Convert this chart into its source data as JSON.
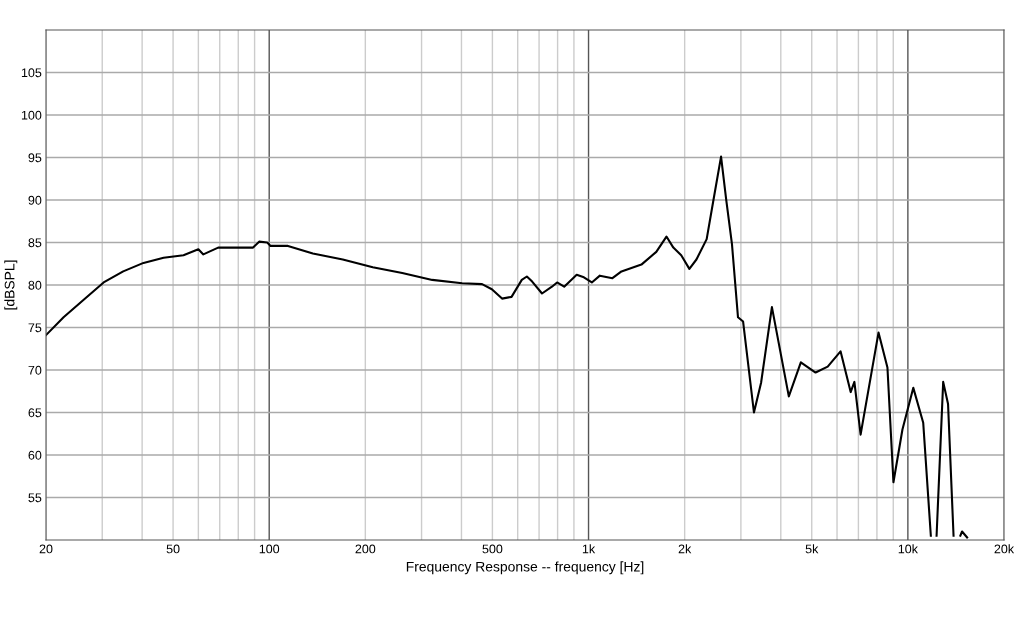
{
  "chart_data": {
    "type": "line",
    "xlabel": "Frequency Response -- frequency [Hz]",
    "ylabel": "[dBSPL]",
    "log": "x",
    "grid": true,
    "legend": false,
    "xlim": [
      20,
      20000
    ],
    "ylim": [
      50,
      110
    ],
    "xticks": [
      20,
      {
        "value": 30,
        "label": null
      },
      {
        "value": 40,
        "label": null
      },
      50,
      {
        "value": 60,
        "label": null
      },
      {
        "value": 70,
        "label": null
      },
      {
        "value": 80,
        "label": null
      },
      {
        "value": 90,
        "label": null
      },
      100,
      200,
      {
        "value": 300,
        "label": null
      },
      {
        "value": 400,
        "label": null
      },
      500,
      {
        "value": 600,
        "label": null
      },
      {
        "value": 700,
        "label": null
      },
      {
        "value": 800,
        "label": null
      },
      {
        "value": 900,
        "label": null
      },
      {
        "value": 1000,
        "label": "1k"
      },
      {
        "value": 2000,
        "label": "2k"
      },
      {
        "value": 3000,
        "label": null
      },
      {
        "value": 4000,
        "label": null
      },
      {
        "value": 5000,
        "label": "5k"
      },
      {
        "value": 6000,
        "label": null
      },
      {
        "value": 7000,
        "label": null
      },
      {
        "value": 8000,
        "label": null
      },
      {
        "value": 9000,
        "label": null
      },
      {
        "value": 10000,
        "label": "10k"
      },
      {
        "value": 20000,
        "label": "20k"
      }
    ],
    "yticks": [
      55,
      60,
      65,
      70,
      75,
      80,
      85,
      90,
      95,
      100,
      105
    ],
    "series": [
      {
        "color": "#000000",
        "line_style": "solid",
        "marker": "none",
        "x": [
          20,
          22.7,
          26.3,
          30.3,
          34.9,
          40.4,
          46.7,
          53.9,
          60,
          62.2,
          69.2,
          83,
          89,
          93,
          98.6,
          101,
          114.5,
          137,
          170,
          211,
          261,
          324,
          402,
          464,
          498,
          536,
          574,
          618,
          641,
          666,
          715,
          768,
          797,
          839,
          918,
          967,
          1024,
          1085,
          1188,
          1268,
          1464,
          1630,
          1754,
          1843,
          1951,
          2069,
          2177,
          2344,
          2456,
          2600,
          2697,
          2813,
          2938,
          3048,
          3296,
          3470,
          3752,
          4238,
          4622,
          5140,
          5610,
          6154,
          6620,
          6800,
          7112,
          8092,
          8630,
          9012,
          9616,
          10400,
          11170,
          11800,
          11900,
          12300,
          12900,
          13360,
          13900,
          14100,
          14600,
          14780,
          15330
        ],
        "values": [
          74.1,
          76.2,
          78.3,
          80.3,
          81.6,
          82.6,
          83.2,
          83.5,
          84.2,
          83.6,
          84.4,
          84.4,
          84.4,
          85.1,
          85.0,
          84.6,
          84.6,
          83.7,
          83.0,
          82.1,
          81.4,
          80.6,
          80.2,
          80.1,
          79.5,
          78.4,
          78.6,
          80.6,
          81.0,
          80.4,
          79.0,
          79.8,
          80.3,
          79.8,
          81.2,
          80.9,
          80.3,
          81.1,
          80.8,
          81.6,
          82.4,
          83.9,
          85.7,
          84.4,
          83.5,
          81.9,
          83.0,
          85.4,
          89.8,
          95.1,
          90.1,
          84.8,
          76.2,
          75.7,
          65.0,
          68.5,
          77.4,
          66.9,
          70.9,
          69.7,
          70.4,
          72.2,
          67.4,
          68.6,
          62.4,
          74.4,
          70.3,
          56.8,
          63.0,
          67.9,
          63.8,
          50.5,
          null,
          50.5,
          68.6,
          66.0,
          50.5,
          null,
          50.5,
          51.0,
          50.3
        ]
      }
    ]
  }
}
